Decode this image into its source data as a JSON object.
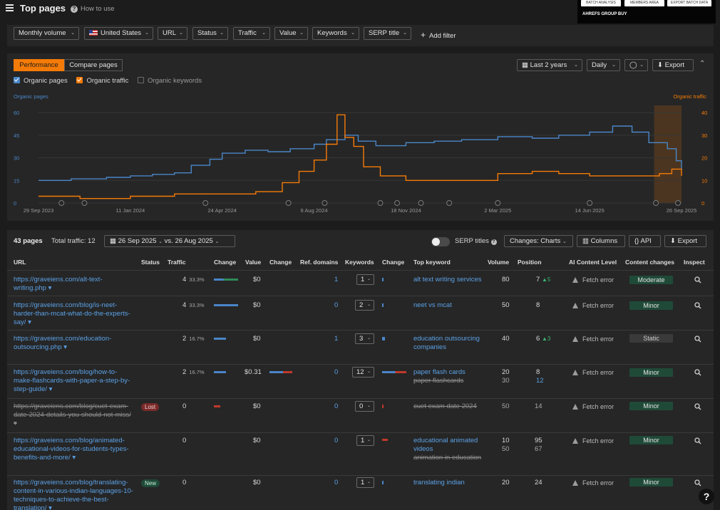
{
  "header": {
    "title": "Top pages",
    "how_to": "How to use"
  },
  "extension": {
    "buttons": [
      "BATCH ANALYSIS",
      "MEMBERS AREA",
      "EXPORT BATCH DATA"
    ],
    "title": "AHREFS GROUP BUY"
  },
  "filters": {
    "monthly_volume": "Monthly volume",
    "country": "United States",
    "url": "URL",
    "status": "Status",
    "traffic": "Traffic",
    "value": "Value",
    "keywords": "Keywords",
    "serp_title": "SERP title",
    "add_filter": "Add filter"
  },
  "performance": {
    "tab_performance": "Performance",
    "tab_compare": "Compare pages",
    "date_range": "Last 2 years",
    "granularity": "Daily",
    "export": "Export",
    "check_pages": "Organic pages",
    "check_traffic": "Organic traffic",
    "check_keywords": "Organic keywords",
    "colors": {
      "pages": "#4a86c8",
      "traffic": "#f57b08"
    }
  },
  "chart_data": {
    "type": "line",
    "left_axis_label": "Organic pages",
    "right_axis_label": "Organic traffic",
    "left_ticks": [
      "60",
      "45",
      "30",
      "15",
      "0"
    ],
    "right_ticks": [
      "40",
      "30",
      "20",
      "10",
      "0"
    ],
    "ylim_left": [
      0,
      60
    ],
    "ylim_right": [
      0,
      40
    ],
    "x_ticks": [
      "29 Sep 2023",
      "11 Jan 2024",
      "24 Apr 2024",
      "6 Aug 2024",
      "18 Nov 2024",
      "2 Mar 2025",
      "14 Jun 2025",
      "26 Sep 2025"
    ],
    "series": [
      {
        "name": "Organic pages",
        "axis": "left",
        "x": [
          "2023-09-29",
          "2023-11-05",
          "2023-12-15",
          "2024-01-11",
          "2024-02-05",
          "2024-03-01",
          "2024-03-20",
          "2024-04-10",
          "2024-04-24",
          "2024-05-20",
          "2024-06-15",
          "2024-07-10",
          "2024-08-06",
          "2024-08-20",
          "2024-09-10",
          "2024-09-25",
          "2024-10-15",
          "2024-11-18",
          "2024-12-20",
          "2025-01-20",
          "2025-03-02",
          "2025-04-10",
          "2025-05-10",
          "2025-06-14",
          "2025-07-10",
          "2025-08-01",
          "2025-08-20",
          "2025-09-10",
          "2025-09-20",
          "2025-09-26"
        ],
        "values": [
          15,
          16,
          17,
          18,
          19,
          20,
          25,
          29,
          33,
          35,
          34,
          36,
          39,
          42,
          45,
          41,
          38,
          40,
          41,
          42,
          44,
          43,
          45,
          47,
          51,
          47,
          40,
          36,
          28,
          22
        ]
      },
      {
        "name": "Organic traffic",
        "axis": "right",
        "x": [
          "2023-09-29",
          "2023-11-15",
          "2024-01-11",
          "2024-03-01",
          "2024-04-24",
          "2024-06-01",
          "2024-07-01",
          "2024-07-20",
          "2024-08-06",
          "2024-08-20",
          "2024-09-01",
          "2024-09-10",
          "2024-09-20",
          "2024-10-01",
          "2024-10-20",
          "2024-11-18",
          "2025-01-01",
          "2025-03-02",
          "2025-04-10",
          "2025-05-10",
          "2025-06-14",
          "2025-07-15",
          "2025-08-15",
          "2025-09-01",
          "2025-09-15",
          "2025-09-26"
        ],
        "values": [
          3,
          2,
          3,
          4,
          4,
          5,
          9,
          14,
          19,
          26,
          39,
          29,
          25,
          16,
          12,
          10,
          10,
          13,
          14,
          13,
          12,
          12,
          12,
          13,
          15,
          12
        ]
      }
    ]
  },
  "table": {
    "pages_count": "43 pages",
    "total_traffic": "Total traffic: 12",
    "date_compare": "26 Sep 2025",
    "vs_label": "vs.",
    "date_compare2": "26 Aug 2025",
    "serp_titles": "SERP titles",
    "changes": "Changes: Charts",
    "columns": "Columns",
    "api": "API",
    "export": "Export",
    "headers": [
      "URL",
      "Status",
      "Traffic",
      "Change",
      "Value",
      "Change",
      "Ref. domains",
      "Keywords",
      "Change",
      "Top keyword",
      "Volume",
      "Position",
      "AI Content Level",
      "Content changes",
      "Inspect"
    ],
    "rows": [
      {
        "url": "https://graveiens.com/alt-text-writing.php",
        "status": "",
        "traffic": "4",
        "traffic_pct": "33.3%",
        "value": "$0",
        "ref_domains": "1",
        "keywords": "1",
        "top_kw": "alt text writing services",
        "top_kw2": "",
        "volume": "80",
        "volume2": "",
        "position": "7",
        "pos_change": "5",
        "position2": "",
        "ai": "Fetch error",
        "content_change": "Moderate"
      },
      {
        "url": "https://graveiens.com/blog/is-neet-harder-than-mcat-what-do-the-experts-say/",
        "status": "",
        "traffic": "4",
        "traffic_pct": "33.3%",
        "value": "$0",
        "ref_domains": "0",
        "keywords": "2",
        "top_kw": "neet vs mcat",
        "top_kw2": "",
        "volume": "50",
        "volume2": "",
        "position": "8",
        "pos_change": "",
        "position2": "",
        "ai": "Fetch error",
        "content_change": "Minor"
      },
      {
        "url": "https://graveiens.com/education-outsourcing.php",
        "status": "",
        "traffic": "2",
        "traffic_pct": "16.7%",
        "value": "$0",
        "ref_domains": "1",
        "keywords": "3",
        "top_kw": "education outsourcing companies",
        "top_kw2": "",
        "volume": "40",
        "volume2": "",
        "position": "6",
        "pos_change": "3",
        "position2": "",
        "ai": "Fetch error",
        "content_change": "Static"
      },
      {
        "url": "https://graveiens.com/blog/how-to-make-flashcards-with-paper-a-step-by-step-guide/",
        "status": "",
        "traffic": "2",
        "traffic_pct": "16.7%",
        "value": "$0.31",
        "ref_domains": "0",
        "keywords": "12",
        "top_kw": "paper flash cards",
        "top_kw2": "paper flashcards",
        "volume": "20",
        "volume2": "30",
        "position": "8",
        "pos_change": "",
        "position2": "12",
        "ai": "Fetch error",
        "content_change": "Minor"
      },
      {
        "url": "https://graveiens.com/blog/cuet-exam-date-2024-details-you-should-not-miss/",
        "status": "Lost",
        "traffic": "0",
        "traffic_pct": "",
        "value": "$0",
        "ref_domains": "0",
        "keywords": "0",
        "top_kw": "cuet exam date 2024",
        "top_kw2": "",
        "volume": "50",
        "volume2": "",
        "position": "14",
        "pos_change": "",
        "position2": "",
        "ai": "Fetch error",
        "content_change": "Minor"
      },
      {
        "url": "https://graveiens.com/blog/animated-educational-videos-for-students-types-benefits-and-more/",
        "status": "",
        "traffic": "0",
        "traffic_pct": "",
        "value": "$0",
        "ref_domains": "0",
        "keywords": "1",
        "top_kw": "educational animated videos",
        "top_kw2": "animation in education",
        "volume": "10",
        "volume2": "50",
        "position": "95",
        "pos_change": "",
        "position2": "67",
        "ai": "Fetch error",
        "content_change": "Minor"
      },
      {
        "url": "https://graveiens.com/blog/translating-content-in-various-indian-languages-10-techniques-to-achieve-the-best-translation/",
        "status": "New",
        "traffic": "0",
        "traffic_pct": "",
        "value": "$0",
        "ref_domains": "0",
        "keywords": "1",
        "top_kw": "translating indian",
        "top_kw2": "",
        "volume": "20",
        "volume2": "",
        "position": "24",
        "pos_change": "",
        "position2": "",
        "ai": "Fetch error",
        "content_change": "Minor"
      }
    ]
  },
  "help": "?"
}
